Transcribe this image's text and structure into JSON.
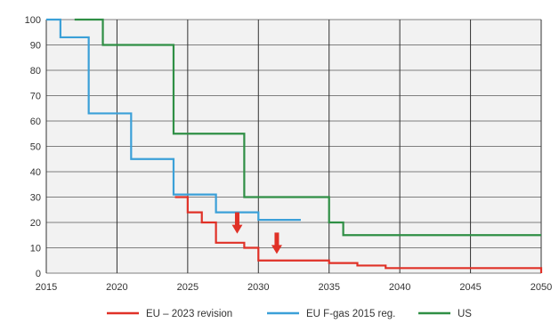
{
  "chart_data": {
    "type": "line",
    "title": "",
    "xlabel": "",
    "ylabel": "",
    "xlim": [
      2015,
      2050
    ],
    "ylim": [
      0,
      100
    ],
    "x_ticks": [
      "2015",
      "2020",
      "2025",
      "2030",
      "2035",
      "2040",
      "2045",
      "2050"
    ],
    "y_ticks": [
      "0",
      "10",
      "20",
      "30",
      "40",
      "50",
      "60",
      "70",
      "80",
      "90",
      "100"
    ],
    "grid": true,
    "step": true,
    "legend_position": "bottom",
    "series": [
      {
        "name": "EU – 2023 revision",
        "color": "#e03127",
        "x": [
          2024.1,
          2025,
          2026,
          2027,
          2029,
          2030,
          2032,
          2035,
          2037,
          2039,
          2049.8,
          2050
        ],
        "values": [
          30,
          24,
          20,
          12,
          10,
          5,
          5,
          4,
          3,
          2,
          2,
          0
        ]
      },
      {
        "name": "EU F-gas 2015 reg.",
        "color": "#3ba0d8",
        "x": [
          2015,
          2016,
          2017,
          2018,
          2020,
          2021,
          2023,
          2024,
          2026,
          2027,
          2029,
          2030,
          2033
        ],
        "values": [
          100,
          93,
          93,
          63,
          63,
          45,
          45,
          31,
          31,
          24,
          24,
          21,
          21
        ]
      },
      {
        "name": "US",
        "color": "#2f8f45",
        "x": [
          2017,
          2019,
          2020,
          2023,
          2024,
          2028,
          2029,
          2033,
          2035,
          2036,
          2050
        ],
        "values": [
          100,
          90,
          90,
          90,
          55,
          55,
          30,
          30,
          20,
          15,
          15
        ]
      }
    ],
    "annotations": [
      {
        "type": "arrow-down",
        "x": 2028.5,
        "y": 24,
        "color": "#e03127"
      },
      {
        "type": "arrow-down",
        "x": 2031.3,
        "y": 16,
        "color": "#e03127"
      }
    ]
  }
}
